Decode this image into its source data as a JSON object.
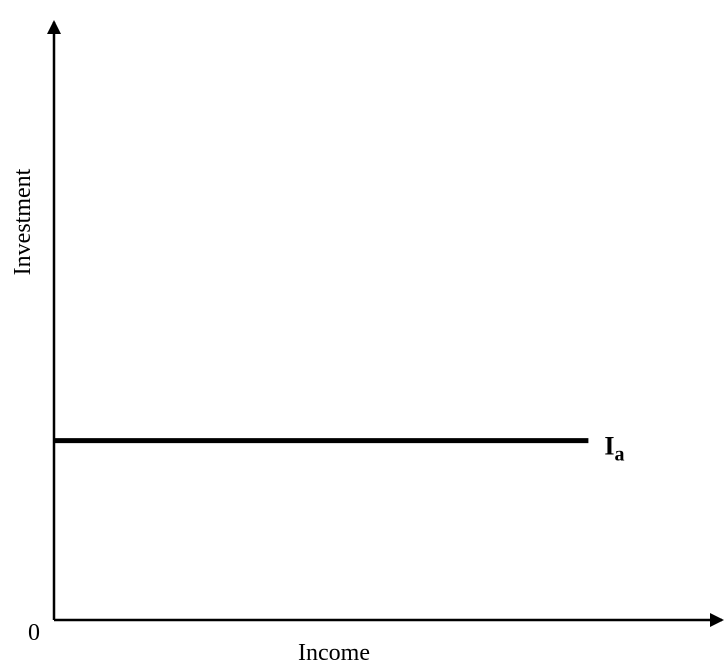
{
  "chart_data": {
    "type": "line",
    "title": "",
    "xlabel": "Income",
    "ylabel": "Investment",
    "origin_label": "0",
    "grid": false,
    "legend": "none",
    "series": [
      {
        "name": "I",
        "name_subscript": "a",
        "x": [
          0,
          0.8
        ],
        "y": [
          0.3,
          0.3
        ],
        "color": "#000000"
      }
    ],
    "xlim": [
      0,
      1
    ],
    "ylim": [
      0,
      1
    ]
  }
}
